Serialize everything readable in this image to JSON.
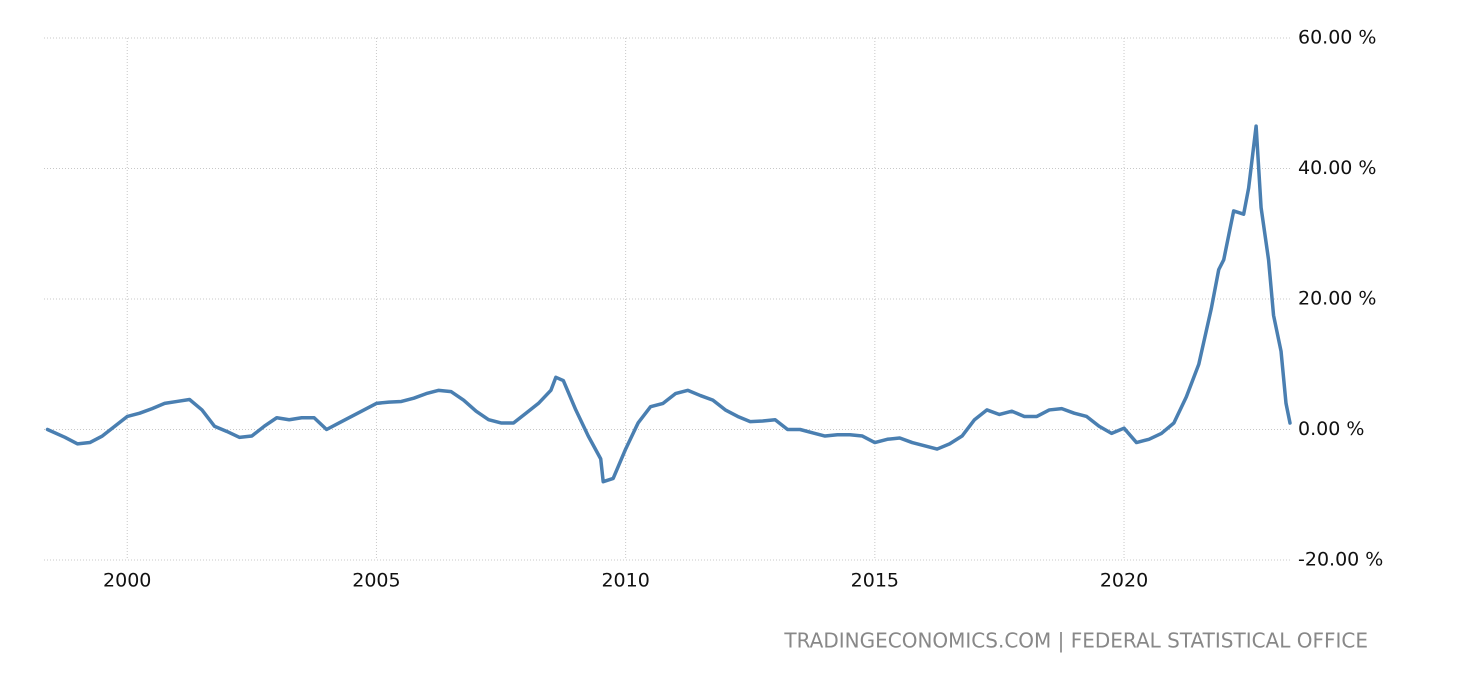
{
  "chart_data": {
    "type": "line",
    "source": "TRADINGECONOMICS.COM | FEDERAL STATISTICAL OFFICE",
    "color": "#4a7fb1",
    "grid": true,
    "x": [
      1998.4,
      1998.75,
      1999.0,
      1999.25,
      1999.5,
      1999.75,
      2000.0,
      2000.25,
      2000.5,
      2000.75,
      2001.0,
      2001.25,
      2001.5,
      2001.75,
      2002.0,
      2002.25,
      2002.5,
      2002.75,
      2003.0,
      2003.25,
      2003.5,
      2003.75,
      2004.0,
      2004.25,
      2004.5,
      2004.75,
      2005.0,
      2005.25,
      2005.5,
      2005.75,
      2006.0,
      2006.25,
      2006.5,
      2006.75,
      2007.0,
      2007.25,
      2007.5,
      2007.75,
      2008.0,
      2008.25,
      2008.5,
      2008.6,
      2008.75,
      2009.0,
      2009.25,
      2009.5,
      2009.55,
      2009.75,
      2010.0,
      2010.25,
      2010.5,
      2010.75,
      2011.0,
      2011.25,
      2011.5,
      2011.75,
      2012.0,
      2012.25,
      2012.5,
      2012.75,
      2013.0,
      2013.25,
      2013.5,
      2013.75,
      2014.0,
      2014.25,
      2014.5,
      2014.75,
      2015.0,
      2015.25,
      2015.5,
      2015.75,
      2016.0,
      2016.25,
      2016.5,
      2016.75,
      2017.0,
      2017.25,
      2017.5,
      2017.75,
      2018.0,
      2018.25,
      2018.5,
      2018.75,
      2019.0,
      2019.25,
      2019.5,
      2019.75,
      2020.0,
      2020.25,
      2020.5,
      2020.75,
      2021.0,
      2021.25,
      2021.5,
      2021.75,
      2021.9,
      2022.0,
      2022.2,
      2022.4,
      2022.5,
      2022.65,
      2022.75,
      2022.9,
      2023.0,
      2023.15,
      2023.25,
      2023.33
    ],
    "values": [
      0,
      -1.2,
      -2.2,
      -2.0,
      -1.0,
      0.5,
      2.0,
      2.5,
      3.2,
      4.0,
      4.3,
      4.6,
      3.0,
      0.5,
      -0.3,
      -1.2,
      -1.0,
      0.5,
      1.8,
      1.5,
      1.8,
      1.8,
      0,
      1.0,
      2.0,
      3.0,
      4.0,
      4.2,
      4.3,
      4.8,
      5.5,
      6.0,
      5.8,
      4.5,
      2.8,
      1.5,
      1.0,
      1.0,
      2.5,
      4.0,
      6.0,
      8.0,
      7.5,
      3.0,
      -1.0,
      -4.5,
      -8.0,
      -7.5,
      -3.0,
      1.0,
      3.5,
      4.0,
      5.5,
      6.0,
      5.2,
      4.5,
      3.0,
      2.0,
      1.2,
      1.3,
      1.5,
      0,
      0,
      -0.5,
      -1.0,
      -0.8,
      -0.8,
      -1.0,
      -2.0,
      -1.5,
      -1.3,
      -2.0,
      -2.5,
      -3.0,
      -2.2,
      -1.0,
      1.5,
      3.0,
      2.3,
      2.8,
      2.0,
      2.0,
      3.0,
      3.2,
      2.5,
      2.0,
      0.5,
      -0.6,
      0.2,
      -2.0,
      -1.5,
      -0.6,
      1.0,
      5.0,
      10.0,
      18.5,
      24.5,
      26.0,
      33.5,
      33.0,
      37.0,
      46.5,
      34.0,
      26.0,
      17.5,
      12.0,
      4.0,
      1.0
    ],
    "xlim": [
      1998.33,
      2023.33
    ],
    "xticks": [
      2000,
      2005,
      2010,
      2015,
      2020
    ],
    "ylim": [
      -20,
      60
    ],
    "yticks": [
      {
        "value": -20,
        "label": "-20.00 %"
      },
      {
        "value": 0,
        "label": "0.00 %"
      },
      {
        "value": 20,
        "label": "20.00 %"
      },
      {
        "value": 40,
        "label": "40.00 %"
      },
      {
        "value": 60,
        "label": "60.00 %"
      }
    ]
  }
}
